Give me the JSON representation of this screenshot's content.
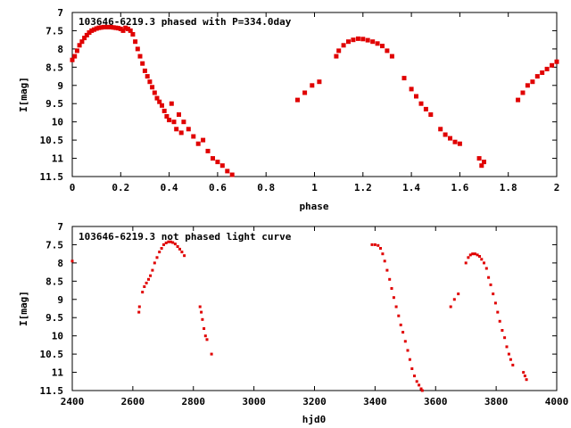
{
  "chart_data": [
    {
      "type": "scatter",
      "title": "103646-6219.3 phased with P=334.0day",
      "xlabel": "phase",
      "ylabel": "I[mag]",
      "xlim": [
        0,
        2
      ],
      "ylim": [
        11.5,
        7
      ],
      "y_inverted": true,
      "grid": false,
      "marker_color": "#e00000",
      "x_ticks": [
        "0",
        "0.2",
        "0.4",
        "0.6",
        "0.8",
        "1",
        "1.2",
        "1.4",
        "1.6",
        "1.8",
        "2"
      ],
      "x_tick_values": [
        0,
        0.2,
        0.4,
        0.6,
        0.8,
        1,
        1.2,
        1.4,
        1.6,
        1.8,
        2
      ],
      "y_ticks": [
        "7",
        "7.5",
        "8",
        "8.5",
        "9",
        "9.5",
        "10",
        "10.5",
        "11",
        "11.5"
      ],
      "y_tick_values": [
        7,
        7.5,
        8,
        8.5,
        9,
        9.5,
        10,
        10.5,
        11,
        11.5
      ],
      "series": [
        {
          "x": [
            0.0,
            0.01,
            0.02,
            0.03,
            0.04,
            0.05,
            0.06,
            0.07,
            0.08,
            0.09,
            0.1,
            0.11,
            0.12,
            0.13,
            0.14,
            0.15,
            0.16,
            0.17,
            0.18,
            0.19,
            0.2,
            0.21,
            0.22,
            0.23,
            0.24,
            0.25,
            0.26,
            0.27,
            0.28,
            0.29,
            0.3,
            0.31,
            0.32,
            0.33,
            0.34,
            0.35,
            0.36,
            0.37,
            0.38,
            0.39,
            0.4,
            0.41,
            0.42,
            0.43,
            0.44,
            0.45,
            0.46,
            0.48,
            0.5,
            0.52,
            0.54,
            0.56,
            0.58,
            0.6,
            0.62,
            0.64,
            0.66,
            0.93,
            0.96,
            0.99,
            1.02,
            1.09,
            1.1,
            1.12,
            1.14,
            1.16,
            1.18,
            1.2,
            1.22,
            1.24,
            1.26,
            1.28,
            1.3,
            1.32,
            1.37,
            1.4,
            1.42,
            1.44,
            1.46,
            1.48,
            1.52,
            1.54,
            1.56,
            1.58,
            1.6,
            1.68,
            1.69,
            1.7,
            1.84,
            1.86,
            1.88,
            1.9,
            1.92,
            1.94,
            1.96,
            1.98,
            2.0
          ],
          "y": [
            8.3,
            8.2,
            8.05,
            7.9,
            7.8,
            7.7,
            7.62,
            7.55,
            7.5,
            7.47,
            7.44,
            7.42,
            7.41,
            7.4,
            7.4,
            7.4,
            7.4,
            7.41,
            7.42,
            7.43,
            7.45,
            7.5,
            7.42,
            7.45,
            7.5,
            7.6,
            7.8,
            8.0,
            8.2,
            8.4,
            8.6,
            8.75,
            8.9,
            9.05,
            9.2,
            9.35,
            9.45,
            9.55,
            9.7,
            9.85,
            9.95,
            9.5,
            10.0,
            10.2,
            9.8,
            10.3,
            10.0,
            10.2,
            10.4,
            10.6,
            10.5,
            10.8,
            11.0,
            11.1,
            11.2,
            11.35,
            11.45,
            9.4,
            9.2,
            9.0,
            8.9,
            8.2,
            8.05,
            7.9,
            7.8,
            7.75,
            7.72,
            7.73,
            7.76,
            7.8,
            7.85,
            7.92,
            8.05,
            8.2,
            8.8,
            9.1,
            9.3,
            9.5,
            9.65,
            9.8,
            10.2,
            10.35,
            10.45,
            10.55,
            10.6,
            11.0,
            11.2,
            11.1,
            9.4,
            9.2,
            9.0,
            8.9,
            8.75,
            8.65,
            8.55,
            8.45,
            8.35
          ]
        }
      ]
    },
    {
      "type": "scatter",
      "title": "103646-6219.3 not phased light curve",
      "xlabel": "hjd0",
      "ylabel": "I[mag]",
      "xlim": [
        2400,
        4000
      ],
      "ylim": [
        11.5,
        7
      ],
      "y_inverted": true,
      "grid": false,
      "marker_color": "#e00000",
      "x_ticks": [
        "2400",
        "2600",
        "2800",
        "3000",
        "3200",
        "3400",
        "3600",
        "3800",
        "4000"
      ],
      "x_tick_values": [
        2400,
        2600,
        2800,
        3000,
        3200,
        3400,
        3600,
        3800,
        4000
      ],
      "y_ticks": [
        "7",
        "7.5",
        "8",
        "8.5",
        "9",
        "9.5",
        "10",
        "10.5",
        "11",
        "11.5"
      ],
      "y_tick_values": [
        7,
        7.5,
        8,
        8.5,
        9,
        9.5,
        10,
        10.5,
        11,
        11.5
      ],
      "series": [
        {
          "x": [
            2400,
            2620,
            2622,
            2632,
            2638,
            2645,
            2652,
            2658,
            2665,
            2672,
            2680,
            2688,
            2695,
            2702,
            2710,
            2718,
            2725,
            2732,
            2740,
            2748,
            2755,
            2762,
            2770,
            2822,
            2826,
            2830,
            2835,
            2840,
            2845,
            2860,
            3390,
            3400,
            3410,
            3418,
            3425,
            3432,
            3440,
            3448,
            3455,
            3462,
            3470,
            3478,
            3485,
            3492,
            3500,
            3508,
            3515,
            3522,
            3530,
            3538,
            3545,
            3552,
            3556,
            3650,
            3662,
            3675,
            3700,
            3708,
            3715,
            3722,
            3730,
            3738,
            3745,
            3752,
            3760,
            3768,
            3775,
            3782,
            3790,
            3798,
            3805,
            3812,
            3820,
            3828,
            3835,
            3842,
            3848,
            3855,
            3890,
            3895,
            3900
          ],
          "y": [
            7.95,
            9.35,
            9.2,
            8.8,
            8.65,
            8.55,
            8.45,
            8.35,
            8.2,
            8.0,
            7.85,
            7.7,
            7.6,
            7.5,
            7.45,
            7.42,
            7.42,
            7.44,
            7.48,
            7.55,
            7.62,
            7.7,
            7.8,
            9.2,
            9.35,
            9.55,
            9.8,
            10.0,
            10.1,
            10.5,
            7.5,
            7.5,
            7.52,
            7.6,
            7.75,
            7.95,
            8.2,
            8.45,
            8.7,
            8.95,
            9.2,
            9.45,
            9.7,
            9.9,
            10.15,
            10.4,
            10.65,
            10.9,
            11.1,
            11.25,
            11.35,
            11.45,
            11.5,
            9.2,
            9.0,
            8.85,
            8.0,
            7.85,
            7.78,
            7.75,
            7.75,
            7.78,
            7.82,
            7.9,
            8.0,
            8.15,
            8.4,
            8.6,
            8.85,
            9.1,
            9.35,
            9.6,
            9.85,
            10.05,
            10.3,
            10.5,
            10.65,
            10.8,
            11.0,
            11.1,
            11.2
          ]
        }
      ]
    }
  ]
}
